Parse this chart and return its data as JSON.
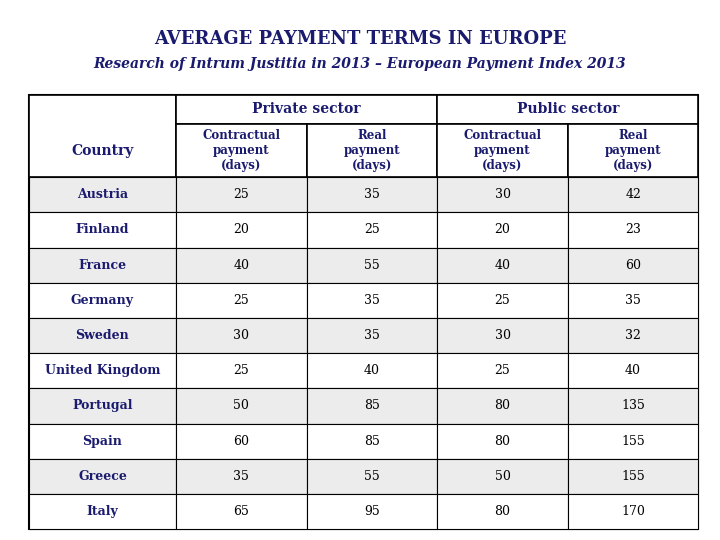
{
  "title": "AVERAGE PAYMENT TERMS IN EUROPE",
  "subtitle": "Research of Intrum Justitia in 2013 – European Payment Index 2013",
  "title_color": "#1a1a6e",
  "subtitle_color": "#1a1a6e",
  "background_color": "#ffffff",
  "header_text_color": "#1a1a6e",
  "country_text_color": "#1a1a6e",
  "data_text_color": "#000000",
  "col_headers": [
    "Country",
    "Contractual\npayment\n(days)",
    "Real\npayment\n(days)",
    "Contractual\npayment\n(days)",
    "Real\npayment\n(days)"
  ],
  "sector_headers": [
    "Private sector",
    "Public sector"
  ],
  "countries": [
    "Austria",
    "Finland",
    "France",
    "Germany",
    "Sweden",
    "United Kingdom",
    "Portugal",
    "Spain",
    "Greece",
    "Italy"
  ],
  "data": [
    [
      25,
      35,
      30,
      42
    ],
    [
      20,
      25,
      20,
      23
    ],
    [
      40,
      55,
      40,
      60
    ],
    [
      25,
      35,
      25,
      35
    ],
    [
      30,
      35,
      30,
      32
    ],
    [
      25,
      40,
      25,
      40
    ],
    [
      50,
      85,
      80,
      135
    ],
    [
      60,
      85,
      80,
      155
    ],
    [
      35,
      55,
      50,
      155
    ],
    [
      65,
      95,
      80,
      170
    ]
  ],
  "row_alt_colors": [
    "#ececec",
    "#ffffff"
  ]
}
